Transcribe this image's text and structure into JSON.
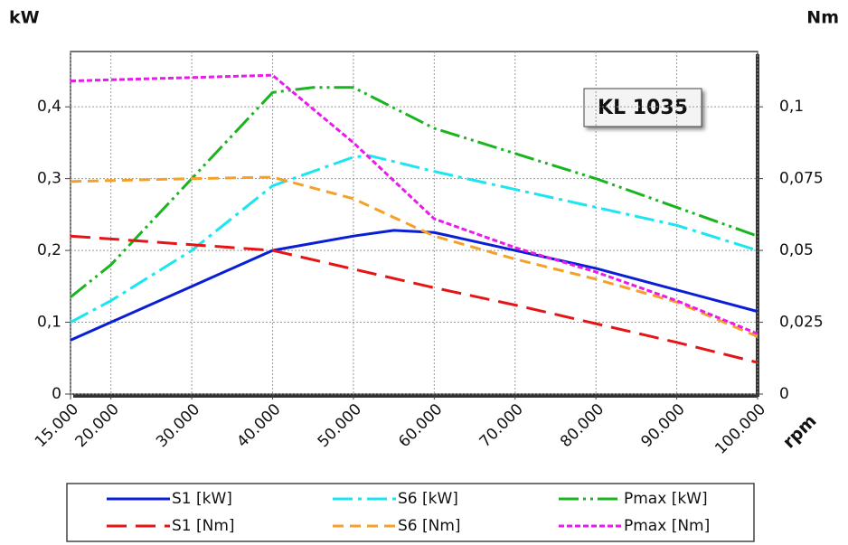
{
  "chart_data": {
    "type": "line",
    "y_label": "kW",
    "y2_label": "Nm",
    "x_label": "rpm",
    "annotation": "KL 1035",
    "grid": true,
    "xlim": [
      15000,
      100000
    ],
    "xticks": [
      {
        "value": 15000,
        "label": "15.000"
      },
      {
        "value": 20000,
        "label": "20.000"
      },
      {
        "value": 30000,
        "label": "30.000"
      },
      {
        "value": 40000,
        "label": "40.000"
      },
      {
        "value": 50000,
        "label": "50.000"
      },
      {
        "value": 60000,
        "label": "60.000"
      },
      {
        "value": 70000,
        "label": "70.000"
      },
      {
        "value": 80000,
        "label": "80.000"
      },
      {
        "value": 90000,
        "label": "90.000"
      },
      {
        "value": 100000,
        "label": "100.000"
      }
    ],
    "ylim": [
      0,
      0.477
    ],
    "yticks": [
      0,
      {
        "value": 0.1,
        "label": "0,1"
      },
      {
        "value": 0.2,
        "label": "0,2"
      },
      {
        "value": 0.3,
        "label": "0,3"
      },
      {
        "value": 0.4,
        "label": "0,4"
      }
    ],
    "y2lim": [
      0,
      0.11925
    ],
    "y2ticks": [
      0,
      {
        "value": 0.025,
        "label": "0,025"
      },
      {
        "value": 0.05,
        "label": "0,05"
      },
      {
        "value": 0.075,
        "label": "0,075"
      },
      {
        "value": 0.1,
        "label": "0,1"
      }
    ],
    "series": [
      {
        "name": "S1 [kW]",
        "color": "#0a1ed6",
        "dash": "solid",
        "x": [
          15000,
          20000,
          30000,
          40000,
          50000,
          55000,
          60000,
          70000,
          80000,
          90000,
          100000
        ],
        "values": [
          0.075,
          0.1,
          0.15,
          0.2,
          0.22,
          0.228,
          0.225,
          0.2,
          0.175,
          0.145,
          0.115
        ]
      },
      {
        "name": "S6 [kW]",
        "color": "#19e6f0",
        "dash": "dashdot",
        "x": [
          15000,
          20000,
          30000,
          40000,
          50000,
          52000,
          60000,
          70000,
          80000,
          90000,
          100000
        ],
        "values": [
          0.1,
          0.13,
          0.2,
          0.29,
          0.33,
          0.332,
          0.31,
          0.285,
          0.26,
          0.235,
          0.2
        ]
      },
      {
        "name": "Pmax [kW]",
        "color": "#19b41e",
        "dash": "dashdotdot",
        "x": [
          15000,
          20000,
          30000,
          40000,
          45000,
          50000,
          60000,
          70000,
          80000,
          90000,
          100000
        ],
        "values": [
          0.135,
          0.18,
          0.3,
          0.42,
          0.427,
          0.427,
          0.37,
          0.335,
          0.3,
          0.26,
          0.22
        ]
      },
      {
        "name": "S1 [Nm]",
        "color": "#e61414",
        "dash": "longdash",
        "axis": "y2",
        "x": [
          15000,
          30000,
          40000,
          50000,
          60000,
          70000,
          80000,
          90000,
          100000
        ],
        "values": [
          0.055,
          0.052,
          0.05,
          0.0435,
          0.037,
          0.031,
          0.0245,
          0.018,
          0.011
        ]
      },
      {
        "name": "S6 [Nm]",
        "color": "#f5a028",
        "dash": "dash",
        "axis": "y2",
        "x": [
          15000,
          30000,
          40000,
          50000,
          60000,
          70000,
          80000,
          90000,
          100000
        ],
        "values": [
          0.074,
          0.075,
          0.0755,
          0.068,
          0.055,
          0.047,
          0.04,
          0.032,
          0.02
        ]
      },
      {
        "name": "Pmax [Nm]",
        "color": "#eb19eb",
        "dash": "shortdash",
        "axis": "y2",
        "x": [
          15000,
          40000,
          50000,
          60000,
          70000,
          80000,
          90000,
          100000
        ],
        "values": [
          0.109,
          0.111,
          0.0875,
          0.061,
          0.051,
          0.0425,
          0.0325,
          0.021
        ]
      }
    ]
  }
}
